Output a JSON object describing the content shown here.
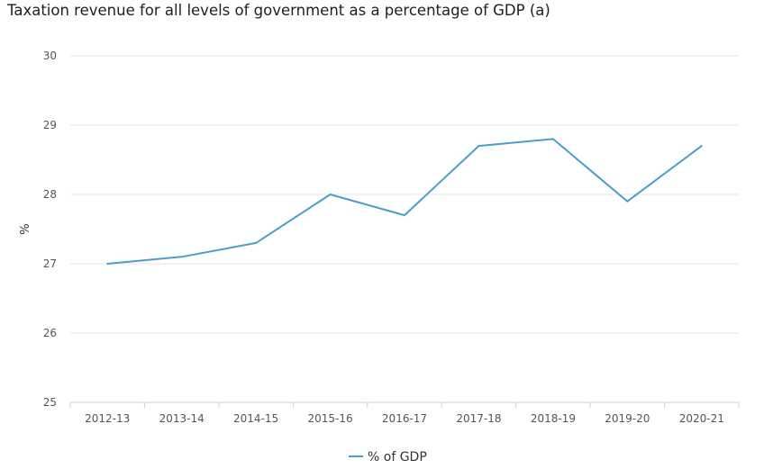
{
  "chart_data": {
    "type": "line",
    "title": "Taxation revenue for all levels of government as a percentage of GDP (a)",
    "xlabel": "",
    "ylabel": "%",
    "categories": [
      "2012-13",
      "2013-14",
      "2014-15",
      "2015-16",
      "2016-17",
      "2017-18",
      "2018-19",
      "2019-20",
      "2020-21"
    ],
    "series": [
      {
        "name": "% of GDP",
        "color": "#4a9fc9",
        "values": [
          27.0,
          27.1,
          27.3,
          28.0,
          27.7,
          28.7,
          28.8,
          27.9,
          28.7
        ]
      }
    ],
    "ylim": [
      25,
      30
    ],
    "yticks": [
      25,
      26,
      27,
      28,
      29,
      30
    ],
    "grid": true,
    "legend_position": "bottom-center",
    "gridline_color": "#e6e6e6",
    "axis_color": "#d0d0d0"
  }
}
